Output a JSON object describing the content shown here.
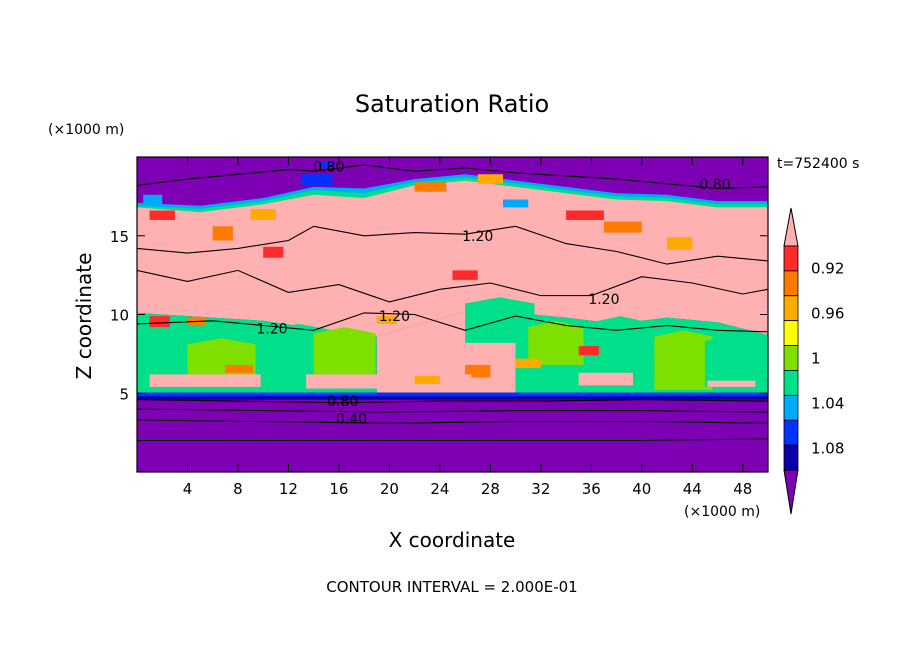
{
  "chart_data": {
    "type": "heatmap",
    "title": "Saturation Ratio",
    "xlabel": "X coordinate",
    "ylabel": "Z coordinate",
    "x_unit": "(×1000 m)",
    "y_unit": "(×1000 m)",
    "time_label": "t=752400 s",
    "footer": "CONTOUR INTERVAL = 2.000E-01",
    "xlim": [
      0,
      50
    ],
    "ylim": [
      0,
      20
    ],
    "x_ticks": [
      4,
      8,
      12,
      16,
      20,
      24,
      28,
      32,
      36,
      40,
      44,
      48
    ],
    "y_ticks": [
      5,
      10,
      15
    ],
    "colorbar": {
      "levels": [
        {
          "color": "#7e00b4"
        },
        {
          "color": "#0a00a8",
          "upper": "0.92"
        },
        {
          "color": "#0032ff",
          "upper": "0.94"
        },
        {
          "color": "#00aaff",
          "upper": "0.96"
        },
        {
          "color": "#00e08a",
          "upper": "0.98"
        },
        {
          "color": "#7ee000",
          "upper": "1"
        },
        {
          "color": "#ffff00",
          "upper": "1.02"
        },
        {
          "color": "#ffaa00",
          "upper": "1.04"
        },
        {
          "color": "#ff7a00",
          "upper": "1.06"
        },
        {
          "color": "#ff2a2a",
          "upper": "1.08"
        },
        {
          "color": "#ffb0b0",
          "upper": "1.10"
        }
      ],
      "tick_labels": [
        "0.92",
        "0.96",
        "1",
        "1.04",
        "1.08"
      ]
    },
    "contour_labels": [
      {
        "text": "0.80",
        "x": 15.2,
        "z": 19.4
      },
      {
        "text": "0.80",
        "x": 45.8,
        "z": 18.3
      },
      {
        "text": "1.20",
        "x": 27.0,
        "z": 15.0
      },
      {
        "text": "1.20",
        "x": 37.0,
        "z": 11.0
      },
      {
        "text": "1.20",
        "x": 20.4,
        "z": 9.9
      },
      {
        "text": "1.20",
        "x": 10.7,
        "z": 9.1
      },
      {
        "text": "0.80",
        "x": 16.3,
        "z": 4.5
      },
      {
        "text": "0.40",
        "x": 17.0,
        "z": 3.4
      }
    ]
  }
}
